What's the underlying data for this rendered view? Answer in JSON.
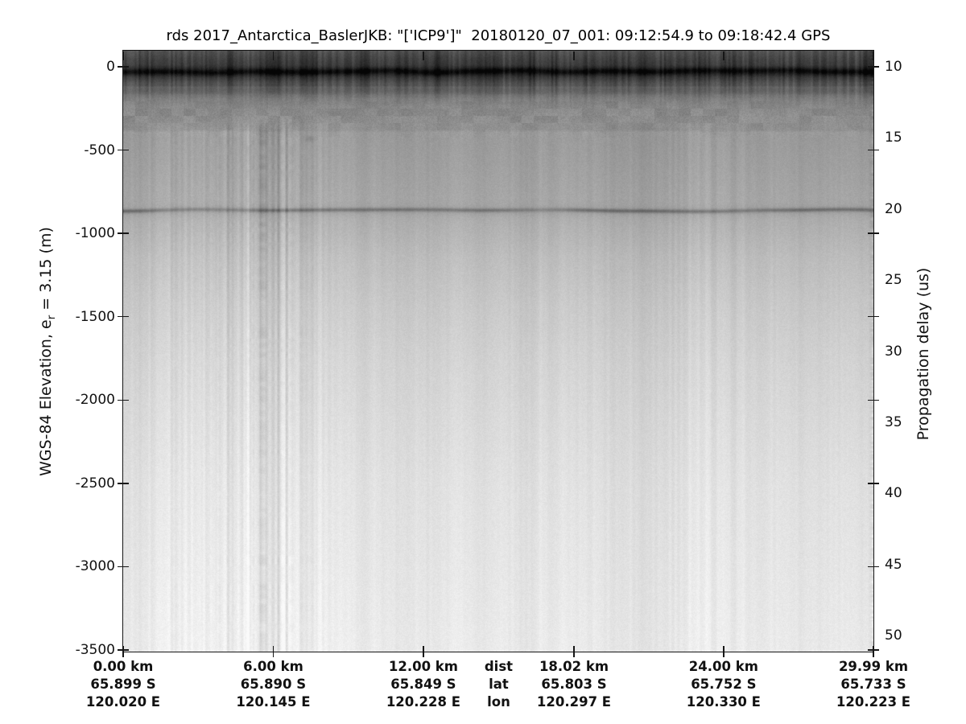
{
  "title": "rds 2017_Antarctica_BaslerJKB: \"['ICP9']\"  20180120_07_001: 09:12:54.9 to 09:18:42.4 GPS",
  "left_axis": {
    "label_prefix": "WGS-84 Elevation, e",
    "label_sub": "r",
    "label_suffix": " = 3.15 (m)",
    "ticks": [
      "0",
      "-500",
      "-1000",
      "-1500",
      "-2000",
      "-2500",
      "-3000",
      "-3500"
    ]
  },
  "right_axis": {
    "label": "Propagation delay (us)",
    "ticks": [
      "10",
      "15",
      "20",
      "25",
      "30",
      "35",
      "40",
      "45",
      "50"
    ]
  },
  "x_axis": {
    "row_labels": [
      "dist",
      "lat",
      "lon"
    ],
    "ticks": [
      {
        "km": 0,
        "dist": "0.00 km",
        "lat": "65.899 S",
        "lon": "120.020 E"
      },
      {
        "km": 6,
        "dist": "6.00 km",
        "lat": "65.890 S",
        "lon": "120.145 E"
      },
      {
        "km": 12,
        "dist": "12.00 km",
        "lat": "65.849 S",
        "lon": "120.228 E"
      },
      {
        "km": 18.02,
        "dist": "18.02 km",
        "lat": "65.803 S",
        "lon": "120.297 E"
      },
      {
        "km": 24,
        "dist": "24.00 km",
        "lat": "65.752 S",
        "lon": "120.330 E"
      },
      {
        "km": 29.99,
        "dist": "29.99 km",
        "lat": "65.733 S",
        "lon": "120.223 E"
      }
    ]
  },
  "chart_data": {
    "type": "heatmap",
    "title": "rds 2017_Antarctica_BaslerJKB: \"['ICP9']\"  20180120_07_001: 09:12:54.9 to 09:18:42.4 GPS",
    "ylabel_left": "WGS-84 Elevation, e_r = 3.15 (m)",
    "ylabel_right": "Propagation delay (us)",
    "xlabel_rows": [
      "dist",
      "lat",
      "lon"
    ],
    "colormap": "grayscale, dark = strong radar return",
    "x_range_km": [
      0,
      29.99
    ],
    "elevation_ticks_m": [
      0,
      -500,
      -1000,
      -1500,
      -2000,
      -2500,
      -3000,
      -3500
    ],
    "delay_ticks_us": [
      10,
      15,
      20,
      25,
      30,
      35,
      40,
      45,
      50
    ],
    "elevation_range_at_plot_edges_m": [
      100,
      -3510
    ],
    "delay_range_at_plot_edges_us": [
      8.8,
      51.1
    ],
    "grid": false,
    "legend": false,
    "features": [
      {
        "name": "surface-return",
        "description": "near-black horizontal echo band with vertical striping at top of profile",
        "elevation_m": -25,
        "delay_us": 10.4,
        "extent_km": [
          0,
          29.99
        ]
      },
      {
        "name": "near-surface-layering",
        "description": "dark-to-medium gray mottled band fading downward",
        "elevation_m_range": [
          0,
          -380
        ],
        "delay_us_range": [
          10,
          14.5
        ]
      },
      {
        "name": "brightness-step-boundary",
        "description": "subtle horizontal step to lighter gray",
        "elevation_m": -380,
        "delay_us": 14.5
      },
      {
        "name": "internal-reflector",
        "description": "thin continuous dark internal layer, slightly undulating",
        "elevation_m": -865,
        "delay_us": 20.0,
        "extent_km": [
          0,
          29.99
        ]
      },
      {
        "name": "vertical-streak-zone-left",
        "description": "strong mottled vertical streaks through full depth",
        "x_km_range": [
          2.3,
          7.0
        ]
      },
      {
        "name": "vertical-streak-zone-right",
        "description": "faint vertical streaks",
        "x_km_range": [
          21.5,
          24.4
        ]
      },
      {
        "name": "deep-background",
        "description": "featureless ice, gradually brightening toward bottom of record"
      },
      {
        "name": "right-edge-artifact",
        "description": "narrow column of horizontal banding at far right edge"
      }
    ]
  }
}
